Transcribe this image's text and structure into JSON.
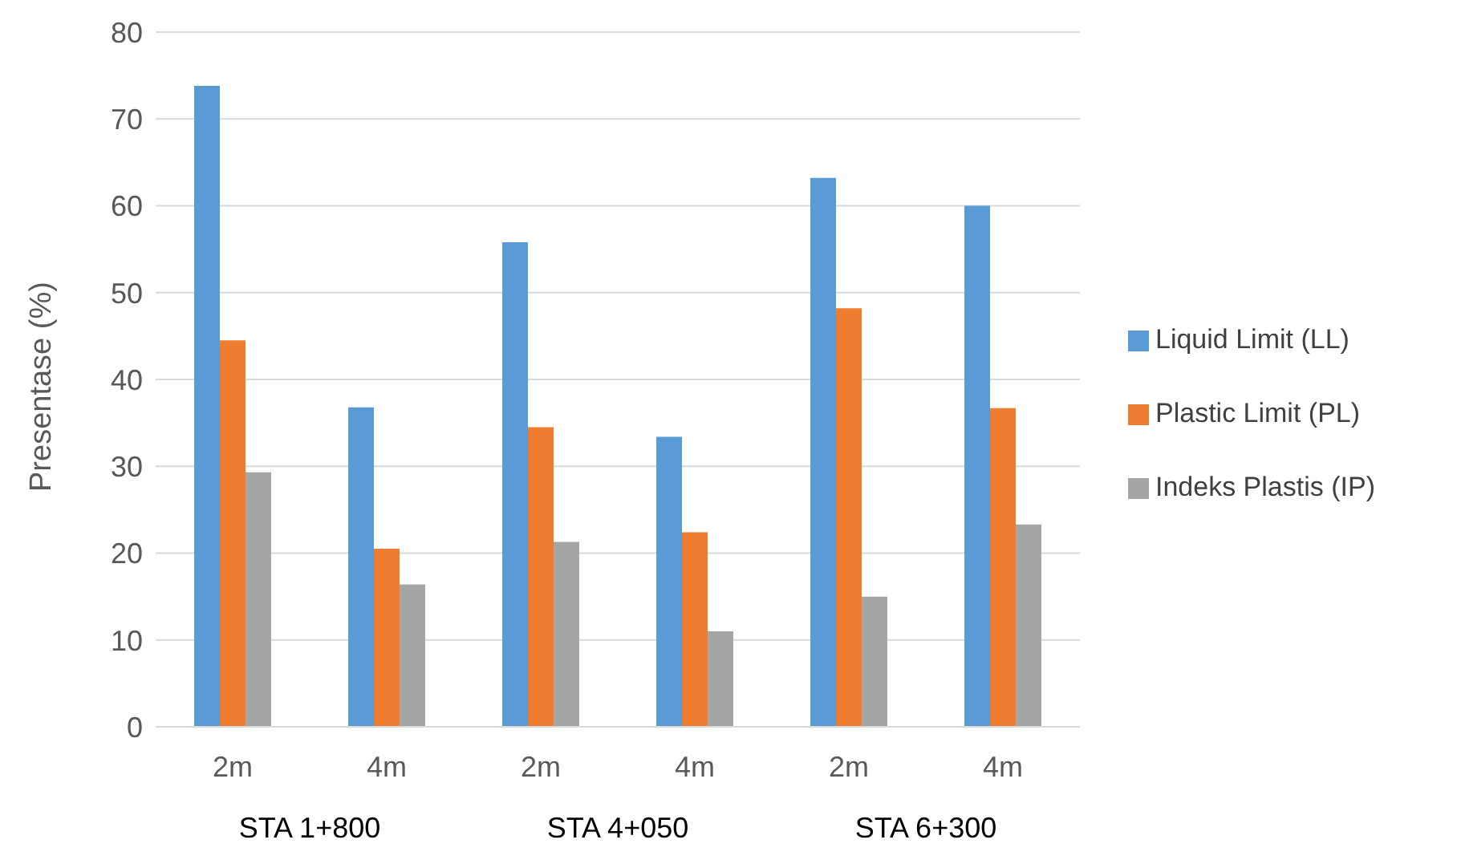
{
  "chart_data": {
    "type": "bar",
    "ylabel": "Presentase  (%)",
    "categories": [
      "2m",
      "4m",
      "2m",
      "4m",
      "2m",
      "4m"
    ],
    "series": [
      {
        "name": "Liquid Limit (LL)",
        "color": "#5b9bd5",
        "values": [
          73.8,
          36.8,
          55.8,
          33.4,
          63.2,
          60.0
        ]
      },
      {
        "name": "Plastic Limit (PL)",
        "color": "#ed7d31",
        "values": [
          44.5,
          20.5,
          34.5,
          22.4,
          48.2,
          36.7
        ]
      },
      {
        "name": "Indeks Plastis (IP)",
        "color": "#a5a5a5",
        "values": [
          29.3,
          16.4,
          21.3,
          11.0,
          15.0,
          23.3
        ]
      }
    ],
    "annotations": [
      "STA 1+800",
      "STA 4+050",
      "STA 6+300"
    ],
    "ylim": [
      0,
      80
    ],
    "yticks": [
      0,
      10,
      20,
      30,
      40,
      50,
      60,
      70,
      80
    ],
    "grid": "y",
    "legend": "right"
  }
}
